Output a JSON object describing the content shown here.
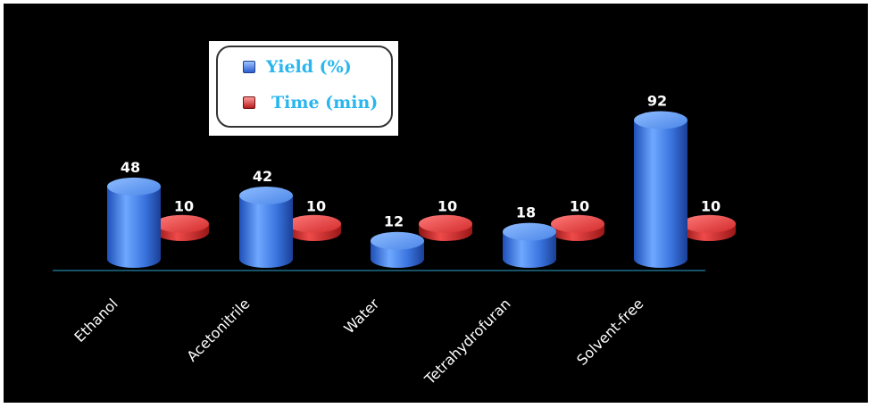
{
  "chart_data": {
    "type": "bar",
    "categories": [
      "Ethanol",
      "Acetonitrile",
      "Water",
      "Tetrahydrofuran",
      "Solvent-free"
    ],
    "series": [
      {
        "name": "Yield (%)",
        "values": [
          48,
          42,
          12,
          18,
          92
        ],
        "color": "#3f7fe0"
      },
      {
        "name": "Time (min)",
        "values": [
          10,
          10,
          10,
          10,
          10
        ],
        "color": "#d42a2a"
      }
    ],
    "title": "",
    "xlabel": "",
    "ylabel": "",
    "ylim": [
      0,
      100
    ],
    "grid": false,
    "legend_position": "top-left"
  },
  "colors": {
    "background": "#000000",
    "axis": "#1f6f8a",
    "label_text": "#ffffff",
    "legend_text": "#29b6ee"
  }
}
